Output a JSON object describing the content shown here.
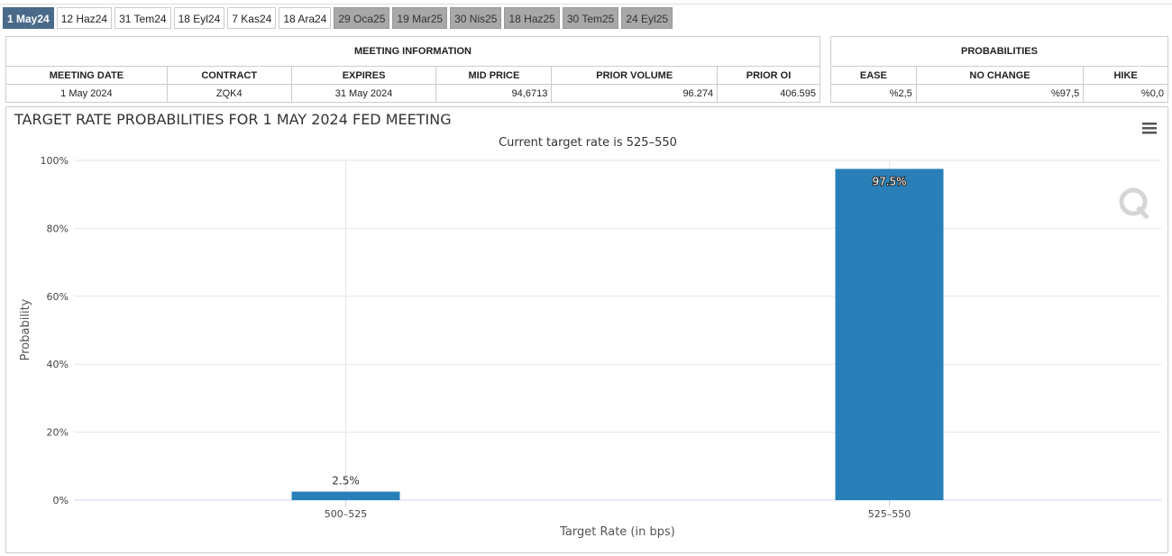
{
  "tabs": [
    "1 May24",
    "12 Haz24",
    "31 Tem24",
    "18 Eyl24",
    "7 Kas24",
    "18 Ara24",
    "29 Oca25",
    "19 Mar25",
    "30 Nis25",
    "18 Haz25",
    "30 Tem25",
    "24 Eyl25"
  ],
  "meeting_info": {
    "title": "MEETING INFORMATION",
    "headers": [
      "MEETING DATE",
      "CONTRACT",
      "EXPIRES",
      "MID PRICE",
      "PRIOR VOLUME",
      "PRIOR OI"
    ],
    "row": [
      "1 May 2024",
      "ZQK4",
      "31 May 2024",
      "94,6713",
      "96.274",
      "406.595"
    ]
  },
  "probabilities": {
    "title": "PROBABILITIES",
    "headers": [
      "EASE",
      "NO CHANGE",
      "HIKE"
    ],
    "row": [
      "%2,5",
      "%97,5",
      "%0,0"
    ]
  },
  "chart_data": {
    "type": "bar",
    "title": "TARGET RATE PROBABILITIES FOR 1 MAY 2024 FED MEETING",
    "subtitle": "Current target rate is 525–550",
    "x_label": "Target Rate (in bps)",
    "y_label": "Probability",
    "categories": [
      "500–525",
      "525–550"
    ],
    "values": [
      2.5,
      97.5
    ],
    "value_labels": [
      "2.5%",
      "97.5%"
    ],
    "color": "#2980b9",
    "ylim": [
      0,
      100
    ],
    "yticks": [
      {
        "value": 0,
        "label": "0%"
      },
      {
        "value": 20,
        "label": "20%"
      },
      {
        "value": 40,
        "label": "40%"
      },
      {
        "value": 60,
        "label": "60%"
      },
      {
        "value": 80,
        "label": "80%"
      },
      {
        "value": 100,
        "label": "100%"
      }
    ],
    "grid": true
  }
}
